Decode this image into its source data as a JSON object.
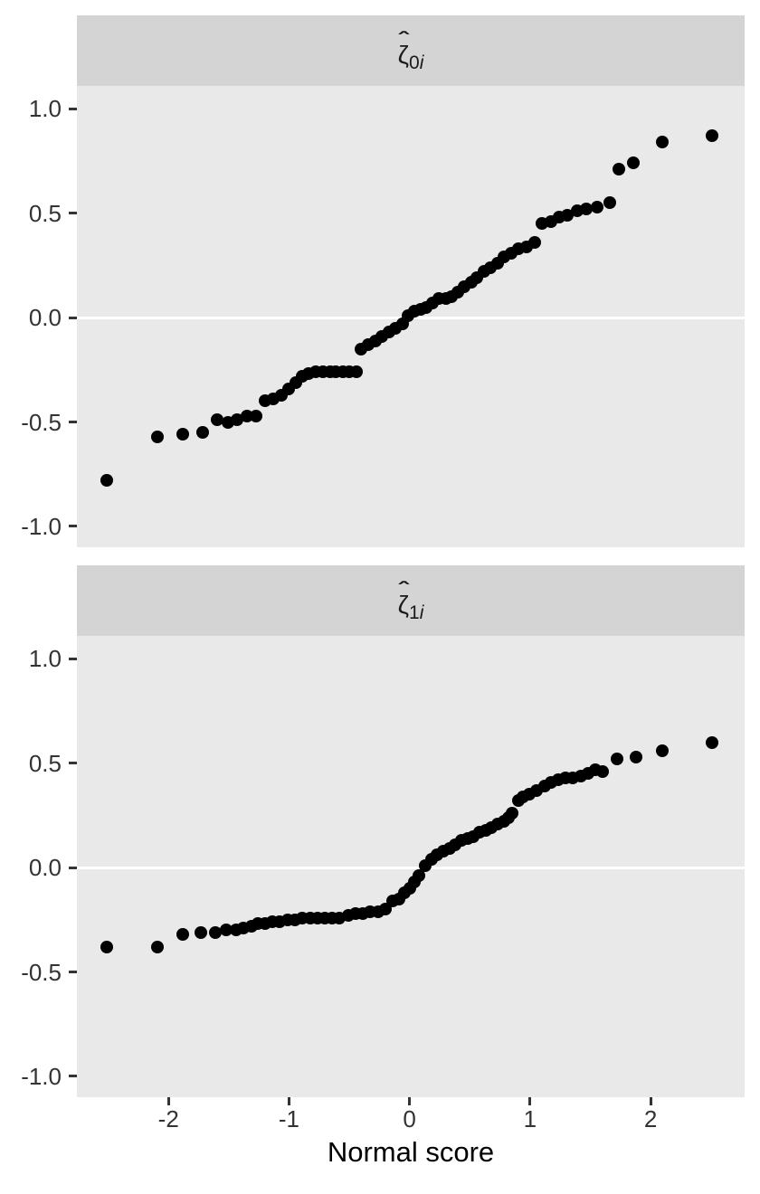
{
  "colors": {
    "strip_bg": "#d4d4d4",
    "panel_bg": "#e9e9e9",
    "grid_line": "#ffffff",
    "point": "#000000",
    "tick": "#333333",
    "tick_label": "#333333",
    "axis_title": "#000000",
    "figure_bg": "#ffffff"
  },
  "facets": [
    {
      "symbol": "ζ",
      "hat": "ˆ",
      "sub_num": "0",
      "sub_it": "i"
    },
    {
      "symbol": "ζ",
      "hat": "ˆ",
      "sub_num": "1",
      "sub_it": "i"
    }
  ],
  "chart_data": {
    "type": "scatter",
    "title": "",
    "xlabel": "Normal score",
    "ylabel": "",
    "facet_labels": [
      "ζ̂0i",
      "ζ̂1i"
    ],
    "legend": "none",
    "grid": "single white horizontal line at y=0 in each panel",
    "xlim": [
      -2.76,
      2.78
    ],
    "ylim": [
      -1.1,
      1.11
    ],
    "x_ticks": [
      -2,
      -1,
      0,
      1,
      2
    ],
    "x_tick_labels": [
      "-2",
      "-1",
      "0",
      "1",
      "2"
    ],
    "y_ticks": [
      1.0,
      0.5,
      0.0,
      -0.5,
      -1.0
    ],
    "y_tick_labels": [
      "1.0",
      "0.5",
      "0.0",
      "-0.5",
      "-1.0"
    ],
    "series": [
      {
        "name": "ζ̂0i",
        "points": [
          [
            -2.51,
            -0.78
          ],
          [
            -2.09,
            -0.57
          ],
          [
            -1.88,
            -0.56
          ],
          [
            -1.72,
            -0.55
          ],
          [
            -1.6,
            -0.49
          ],
          [
            -1.51,
            -0.5
          ],
          [
            -1.43,
            -0.49
          ],
          [
            -1.35,
            -0.47
          ],
          [
            -1.27,
            -0.47
          ],
          [
            -1.2,
            -0.4
          ],
          [
            -1.13,
            -0.39
          ],
          [
            -1.06,
            -0.37
          ],
          [
            -1.0,
            -0.34
          ],
          [
            -0.94,
            -0.31
          ],
          [
            -0.89,
            -0.28
          ],
          [
            -0.84,
            -0.27
          ],
          [
            -0.78,
            -0.26
          ],
          [
            -0.72,
            -0.26
          ],
          [
            -0.66,
            -0.26
          ],
          [
            -0.61,
            -0.26
          ],
          [
            -0.55,
            -0.26
          ],
          [
            -0.5,
            -0.26
          ],
          [
            -0.44,
            -0.26
          ],
          [
            -0.4,
            -0.15
          ],
          [
            -0.34,
            -0.13
          ],
          [
            -0.28,
            -0.11
          ],
          [
            -0.23,
            -0.09
          ],
          [
            -0.17,
            -0.07
          ],
          [
            -0.12,
            -0.05
          ],
          [
            -0.06,
            -0.03
          ],
          [
            -0.01,
            0.01
          ],
          [
            0.04,
            0.03
          ],
          [
            0.09,
            0.04
          ],
          [
            0.14,
            0.05
          ],
          [
            0.19,
            0.07
          ],
          [
            0.24,
            0.09
          ],
          [
            0.3,
            0.09
          ],
          [
            0.35,
            0.1
          ],
          [
            0.4,
            0.12
          ],
          [
            0.45,
            0.15
          ],
          [
            0.51,
            0.17
          ],
          [
            0.56,
            0.19
          ],
          [
            0.62,
            0.22
          ],
          [
            0.67,
            0.24
          ],
          [
            0.73,
            0.26
          ],
          [
            0.78,
            0.29
          ],
          [
            0.84,
            0.31
          ],
          [
            0.9,
            0.33
          ],
          [
            0.97,
            0.34
          ],
          [
            1.04,
            0.36
          ],
          [
            1.1,
            0.45
          ],
          [
            1.17,
            0.46
          ],
          [
            1.24,
            0.48
          ],
          [
            1.31,
            0.49
          ],
          [
            1.39,
            0.51
          ],
          [
            1.47,
            0.52
          ],
          [
            1.56,
            0.53
          ],
          [
            1.66,
            0.55
          ],
          [
            1.74,
            0.71
          ],
          [
            1.86,
            0.74
          ],
          [
            2.1,
            0.84
          ],
          [
            2.51,
            0.87
          ]
        ]
      },
      {
        "name": "ζ̂1i",
        "points": [
          [
            -2.51,
            -0.38
          ],
          [
            -2.09,
            -0.38
          ],
          [
            -1.88,
            -0.32
          ],
          [
            -1.73,
            -0.31
          ],
          [
            -1.61,
            -0.31
          ],
          [
            -1.52,
            -0.3
          ],
          [
            -1.44,
            -0.3
          ],
          [
            -1.38,
            -0.29
          ],
          [
            -1.31,
            -0.28
          ],
          [
            -1.26,
            -0.27
          ],
          [
            -1.2,
            -0.27
          ],
          [
            -1.14,
            -0.26
          ],
          [
            -1.08,
            -0.26
          ],
          [
            -1.01,
            -0.25
          ],
          [
            -0.95,
            -0.25
          ],
          [
            -0.89,
            -0.24
          ],
          [
            -0.82,
            -0.24
          ],
          [
            -0.76,
            -0.24
          ],
          [
            -0.7,
            -0.24
          ],
          [
            -0.64,
            -0.24
          ],
          [
            -0.58,
            -0.24
          ],
          [
            -0.51,
            -0.23
          ],
          [
            -0.45,
            -0.22
          ],
          [
            -0.39,
            -0.22
          ],
          [
            -0.33,
            -0.21
          ],
          [
            -0.26,
            -0.21
          ],
          [
            -0.2,
            -0.2
          ],
          [
            -0.14,
            -0.16
          ],
          [
            -0.09,
            -0.15
          ],
          [
            -0.04,
            -0.12
          ],
          [
            0.0,
            -0.1
          ],
          [
            0.04,
            -0.07
          ],
          [
            0.08,
            -0.04
          ],
          [
            0.13,
            0.01
          ],
          [
            0.18,
            0.04
          ],
          [
            0.23,
            0.06
          ],
          [
            0.28,
            0.08
          ],
          [
            0.33,
            0.09
          ],
          [
            0.38,
            0.11
          ],
          [
            0.43,
            0.13
          ],
          [
            0.48,
            0.14
          ],
          [
            0.53,
            0.15
          ],
          [
            0.58,
            0.17
          ],
          [
            0.63,
            0.18
          ],
          [
            0.68,
            0.19
          ],
          [
            0.73,
            0.21
          ],
          [
            0.78,
            0.22
          ],
          [
            0.82,
            0.24
          ],
          [
            0.85,
            0.26
          ],
          [
            0.9,
            0.32
          ],
          [
            0.94,
            0.34
          ],
          [
            0.99,
            0.35
          ],
          [
            1.05,
            0.37
          ],
          [
            1.12,
            0.39
          ],
          [
            1.17,
            0.41
          ],
          [
            1.23,
            0.42
          ],
          [
            1.29,
            0.43
          ],
          [
            1.35,
            0.43
          ],
          [
            1.42,
            0.44
          ],
          [
            1.48,
            0.45
          ],
          [
            1.54,
            0.47
          ],
          [
            1.6,
            0.46
          ],
          [
            1.72,
            0.52
          ],
          [
            1.88,
            0.53
          ],
          [
            2.1,
            0.56
          ],
          [
            2.51,
            0.6
          ]
        ]
      }
    ]
  }
}
